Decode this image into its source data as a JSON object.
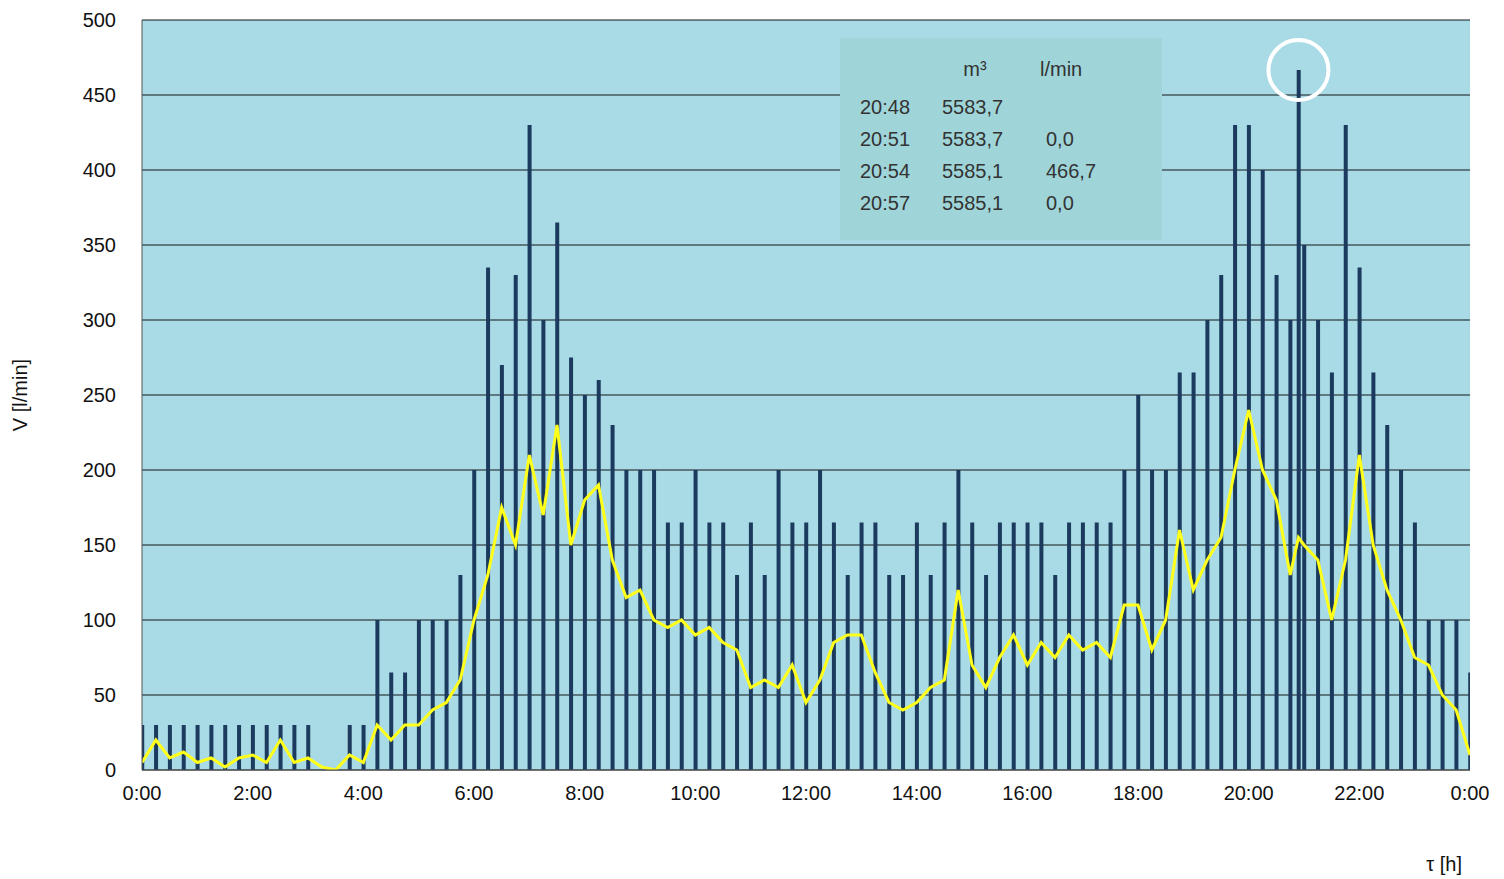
{
  "chart_data": {
    "type": "combo",
    "x_label": "τ [h]",
    "y_label": "V [l/min]",
    "x": [
      0,
      0.25,
      0.5,
      0.75,
      1,
      1.25,
      1.5,
      1.75,
      2,
      2.25,
      2.5,
      2.75,
      3,
      3.25,
      3.5,
      3.75,
      4,
      4.25,
      4.5,
      4.75,
      5,
      5.25,
      5.5,
      5.75,
      6,
      6.25,
      6.5,
      6.75,
      7,
      7.25,
      7.5,
      7.75,
      8,
      8.25,
      8.5,
      8.75,
      9,
      9.25,
      9.5,
      9.75,
      10,
      10.25,
      10.5,
      10.75,
      11,
      11.25,
      11.5,
      11.75,
      12,
      12.25,
      12.5,
      12.75,
      13,
      13.25,
      13.5,
      13.75,
      14,
      14.25,
      14.5,
      14.75,
      15,
      15.25,
      15.5,
      15.75,
      16,
      16.25,
      16.5,
      16.75,
      17,
      17.25,
      17.5,
      17.75,
      18,
      18.25,
      18.5,
      18.75,
      19,
      19.25,
      19.5,
      19.75,
      20,
      20.25,
      20.5,
      20.75,
      20.9,
      21,
      21.25,
      21.5,
      21.75,
      22,
      22.25,
      22.5,
      22.75,
      23,
      23.25,
      23.5,
      23.75,
      24
    ],
    "series": [
      {
        "type": "bar",
        "color": "#1b3a5e",
        "values": [
          30,
          30,
          30,
          30,
          30,
          30,
          30,
          30,
          30,
          30,
          30,
          30,
          30,
          0,
          0,
          30,
          30,
          100,
          65,
          65,
          100,
          100,
          100,
          130,
          200,
          335,
          270,
          330,
          430,
          300,
          365,
          275,
          250,
          260,
          230,
          200,
          200,
          200,
          165,
          165,
          200,
          165,
          165,
          130,
          165,
          130,
          200,
          165,
          165,
          200,
          165,
          130,
          165,
          165,
          130,
          130,
          165,
          130,
          165,
          200,
          165,
          130,
          165,
          165,
          165,
          165,
          130,
          165,
          165,
          165,
          165,
          200,
          250,
          200,
          200,
          265,
          265,
          300,
          330,
          430,
          430,
          400,
          330,
          300,
          466.7,
          350,
          300,
          265,
          430,
          335,
          265,
          230,
          200,
          165,
          100,
          100,
          100,
          65
        ]
      },
      {
        "type": "line",
        "color": "#ffff1a",
        "values": [
          5,
          20,
          8,
          12,
          5,
          8,
          2,
          8,
          10,
          5,
          20,
          5,
          8,
          2,
          0,
          10,
          5,
          30,
          20,
          30,
          30,
          40,
          45,
          60,
          100,
          130,
          175,
          150,
          210,
          170,
          230,
          150,
          180,
          190,
          140,
          115,
          120,
          100,
          95,
          100,
          90,
          95,
          85,
          80,
          55,
          60,
          55,
          70,
          45,
          60,
          85,
          90,
          90,
          65,
          45,
          40,
          45,
          55,
          60,
          120,
          70,
          55,
          75,
          90,
          70,
          85,
          75,
          90,
          80,
          85,
          75,
          110,
          110,
          80,
          100,
          160,
          120,
          140,
          155,
          200,
          240,
          200,
          180,
          130,
          155,
          150,
          140,
          100,
          140,
          210,
          150,
          120,
          100,
          75,
          70,
          50,
          40,
          10
        ]
      }
    ],
    "xlim": [
      0,
      24
    ],
    "xticks": [
      {
        "value": 0,
        "label": "0:00"
      },
      {
        "value": 2,
        "label": "2:00"
      },
      {
        "value": 4,
        "label": "4:00"
      },
      {
        "value": 6,
        "label": "6:00"
      },
      {
        "value": 8,
        "label": "8:00"
      },
      {
        "value": 10,
        "label": "10:00"
      },
      {
        "value": 12,
        "label": "12:00"
      },
      {
        "value": 14,
        "label": "14:00"
      },
      {
        "value": 16,
        "label": "16:00"
      },
      {
        "value": 18,
        "label": "18:00"
      },
      {
        "value": 20,
        "label": "20:00"
      },
      {
        "value": 22,
        "label": "22:00"
      },
      {
        "value": 24,
        "label": "0:00"
      }
    ],
    "ylim": [
      0,
      500
    ],
    "yticks": [
      0,
      50,
      100,
      150,
      200,
      250,
      300,
      350,
      400,
      450,
      500
    ],
    "grid": true,
    "annotation": {
      "x": 20.9,
      "y": 466.7,
      "marker": "circle",
      "color": "#ffffff",
      "table": {
        "header": [
          "m³",
          "l/min"
        ],
        "rows": [
          [
            "20:48",
            "5583,7"
          ],
          [
            "20:51",
            "5583,7",
            "0,0"
          ],
          [
            "20:54",
            "5585,1",
            "466,7"
          ],
          [
            "20:57",
            "5585,1",
            "0,0"
          ]
        ]
      }
    }
  }
}
